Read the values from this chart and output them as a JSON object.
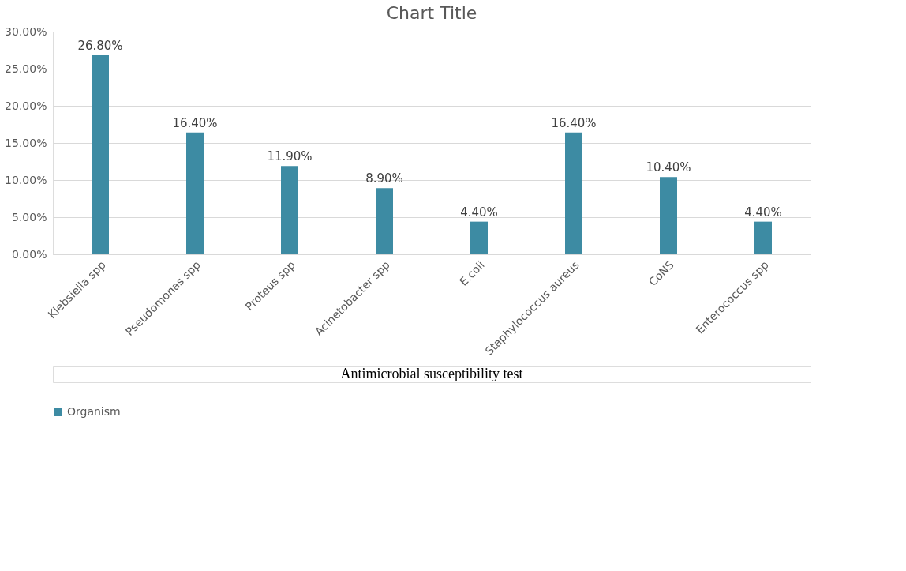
{
  "chart_data": {
    "type": "bar",
    "title": "Chart Title",
    "categories": [
      "Klebsiella spp",
      "Pseudomonas spp",
      "Proteus spp",
      "Acinetobacter spp",
      "E.coli",
      "Staphylococcus aureus",
      "CoNS",
      "Enterococcus spp"
    ],
    "series": [
      {
        "name": "Organism",
        "color": "#3d8ba3",
        "values": [
          26.8,
          16.4,
          11.9,
          8.9,
          4.4,
          16.4,
          10.4,
          4.4
        ],
        "value_labels": [
          "26.80%",
          "16.40%",
          "11.90%",
          "8.90%",
          "4.40%",
          "16.40%",
          "10.40%",
          "4.40%"
        ]
      }
    ],
    "ylim": [
      0,
      30
    ],
    "yticks": [
      {
        "value": 0,
        "label": "0.00%"
      },
      {
        "value": 5,
        "label": "5.00%"
      },
      {
        "value": 10,
        "label": "10.00%"
      },
      {
        "value": 15,
        "label": "15.00%"
      },
      {
        "value": 20,
        "label": "20.00%"
      },
      {
        "value": 25,
        "label": "25.00%"
      },
      {
        "value": 30,
        "label": "30.00%"
      }
    ],
    "grid": "y",
    "legend": "bottom",
    "annotations": [
      "Antimicrobial susceptibility test"
    ]
  }
}
